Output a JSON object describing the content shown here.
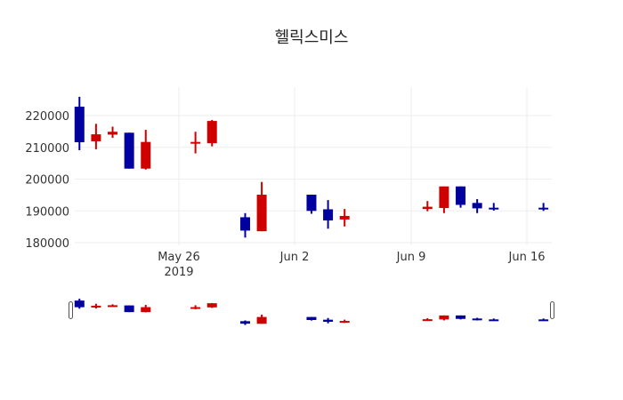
{
  "title": "헬릭스미스",
  "colors": {
    "increasing": "#d00000",
    "decreasing": "#0000a0",
    "grid": "#eeeeee"
  },
  "chart_data": {
    "type": "candlestick",
    "title": "헬릭스미스",
    "xlabel": "",
    "ylabel": "",
    "ylim": [
      177500,
      227500
    ],
    "yticks": [
      180000,
      190000,
      200000,
      210000,
      220000
    ],
    "xticks": [
      "May 26\n2019",
      "Jun 2",
      "Jun 9",
      "Jun 16"
    ],
    "rangeslider": true,
    "candles": [
      {
        "date": "2019-05-20",
        "open": 222800,
        "high": 225900,
        "low": 209100,
        "close": 211600
      },
      {
        "date": "2019-05-21",
        "open": 211900,
        "high": 217400,
        "low": 209400,
        "close": 214100
      },
      {
        "date": "2019-05-22",
        "open": 214000,
        "high": 216500,
        "low": 213000,
        "close": 214900
      },
      {
        "date": "2019-05-23",
        "open": 214600,
        "high": 214600,
        "low": 203300,
        "close": 203300
      },
      {
        "date": "2019-05-24",
        "open": 203300,
        "high": 215500,
        "low": 203000,
        "close": 211700
      },
      {
        "date": "2019-05-27",
        "open": 211500,
        "high": 214900,
        "low": 208100,
        "close": 211700
      },
      {
        "date": "2019-05-28",
        "open": 211300,
        "high": 218600,
        "low": 210300,
        "close": 218300
      },
      {
        "date": "2019-05-30",
        "open": 188000,
        "high": 189300,
        "low": 181600,
        "close": 183800
      },
      {
        "date": "2019-05-31",
        "open": 183600,
        "high": 199100,
        "low": 183600,
        "close": 195100
      },
      {
        "date": "2019-06-03",
        "open": 195100,
        "high": 195100,
        "low": 189100,
        "close": 190000
      },
      {
        "date": "2019-06-04",
        "open": 190500,
        "high": 193400,
        "low": 184400,
        "close": 187000
      },
      {
        "date": "2019-06-05",
        "open": 187300,
        "high": 190600,
        "low": 185100,
        "close": 188400
      },
      {
        "date": "2019-06-10",
        "open": 190600,
        "high": 193100,
        "low": 189900,
        "close": 191300
      },
      {
        "date": "2019-06-11",
        "open": 190900,
        "high": 197700,
        "low": 189300,
        "close": 197700
      },
      {
        "date": "2019-06-12",
        "open": 197700,
        "high": 197700,
        "low": 191000,
        "close": 191900
      },
      {
        "date": "2019-06-13",
        "open": 192500,
        "high": 193700,
        "low": 189300,
        "close": 190800
      },
      {
        "date": "2019-06-14",
        "open": 191000,
        "high": 192500,
        "low": 190100,
        "close": 190600
      },
      {
        "date": "2019-06-17",
        "open": 191000,
        "high": 192500,
        "low": 190000,
        "close": 190500
      }
    ]
  }
}
